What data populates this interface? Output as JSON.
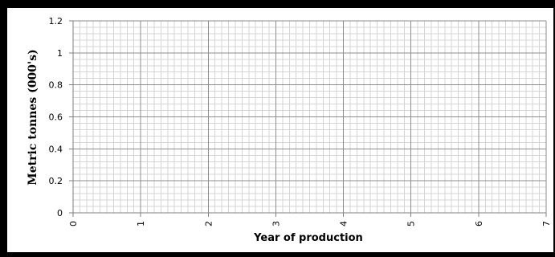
{
  "chart_data": {
    "type": "line",
    "title": "",
    "xlabel": "Year of production",
    "ylabel": "Metric tonnes (000's)",
    "xlim": [
      0,
      7
    ],
    "ylim": [
      0,
      1.2
    ],
    "x_ticks": [
      "0",
      "1",
      "2",
      "3",
      "4",
      "5",
      "6",
      "7"
    ],
    "y_ticks": [
      "0",
      "0.2",
      "0.4",
      "0.6",
      "0.8",
      "1",
      "1.2"
    ],
    "x_minor_divisions": 10,
    "y_minor_divisions": 5,
    "grid": true,
    "series": []
  },
  "colors": {
    "major_grid": "#8c8c8c",
    "minor_grid": "#d4d4d4",
    "axis": "#7f7f7f",
    "frame": "#000000"
  }
}
